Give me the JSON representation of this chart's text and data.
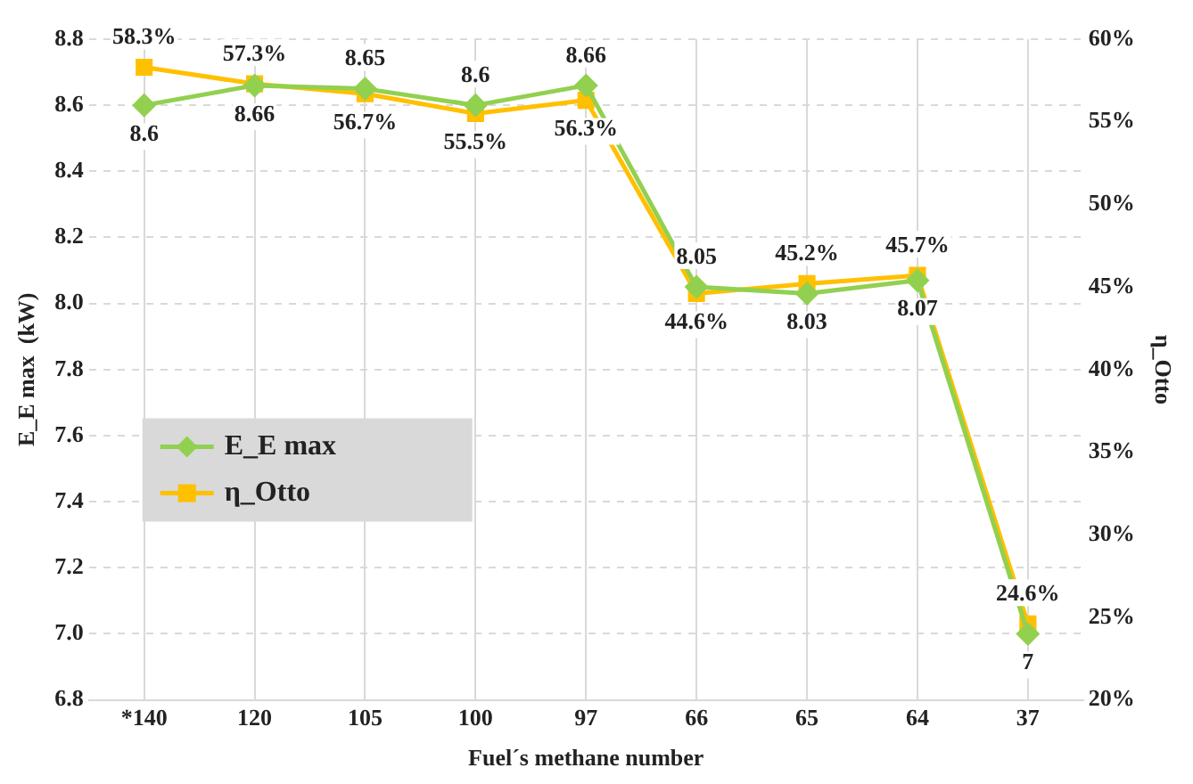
{
  "chart_data": {
    "type": "line",
    "categories": [
      "*140",
      "120",
      "105",
      "100",
      "97",
      "66",
      "65",
      "64",
      "37"
    ],
    "xlabel": "Fuel´s methane number",
    "ylabel": "E_E max  (kW)",
    "y2label": "η_Otto",
    "series": [
      {
        "name": "E_E max",
        "color": "#92d050",
        "marker": "diamond",
        "values": [
          8.6,
          8.66,
          8.65,
          8.6,
          8.66,
          8.05,
          8.03,
          8.07,
          7
        ],
        "value_labels": [
          "8.6",
          "8.66",
          "8.65",
          "8.6",
          "8.66",
          "8.05",
          "8.03",
          "8.07",
          "7"
        ]
      },
      {
        "name": "η_Otto",
        "color": "#ffc000",
        "marker": "square",
        "axis": "y2",
        "values": [
          58.3,
          57.3,
          56.7,
          55.5,
          56.3,
          44.6,
          45.2,
          45.7,
          24.6
        ],
        "value_labels": [
          "58.3%",
          "57.3%",
          "56.7%",
          "55.5%",
          "56.3%",
          "44.6%",
          "45.2%",
          "45.7%",
          "24.6%"
        ]
      }
    ],
    "ylim": [
      6.8,
      8.8
    ],
    "yticks": [
      {
        "value": 6.8,
        "label": "6.8"
      },
      {
        "value": 7,
        "label": "7.0"
      },
      {
        "value": 7.2,
        "label": "7.2"
      },
      {
        "value": 7.4,
        "label": "7.4"
      },
      {
        "value": 7.6,
        "label": "7.6"
      },
      {
        "value": 7.8,
        "label": "7.8"
      },
      {
        "value": 8,
        "label": "8.0"
      },
      {
        "value": 8.2,
        "label": "8.2"
      },
      {
        "value": 8.4,
        "label": "8.4"
      },
      {
        "value": 8.6,
        "label": "8.6"
      },
      {
        "value": 8.8,
        "label": "8.8"
      }
    ],
    "y2lim": [
      20,
      60
    ],
    "y2ticks": [
      {
        "value": 20,
        "label": "20%"
      },
      {
        "value": 25,
        "label": "25%"
      },
      {
        "value": 30,
        "label": "30%"
      },
      {
        "value": 35,
        "label": "35%"
      },
      {
        "value": 40,
        "label": "40%"
      },
      {
        "value": 45,
        "label": "45%"
      },
      {
        "value": 50,
        "label": "50%"
      },
      {
        "value": 55,
        "label": "55%"
      },
      {
        "value": 60,
        "label": "60%"
      }
    ],
    "grid": true,
    "legend": "bottom left",
    "line_style": "solid"
  }
}
